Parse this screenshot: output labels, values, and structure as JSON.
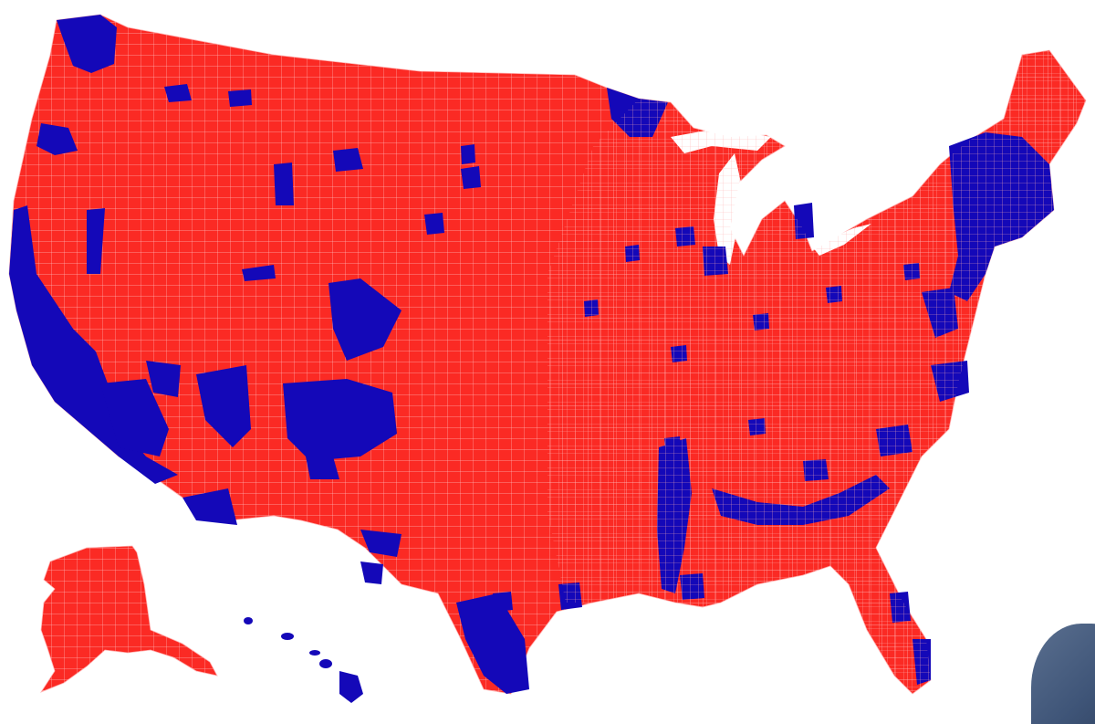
{
  "map": {
    "colors": {
      "red": "#fb2a24",
      "blue": "#1408b8",
      "border": "#ffb3b3",
      "water": "#ffffff"
    }
  }
}
